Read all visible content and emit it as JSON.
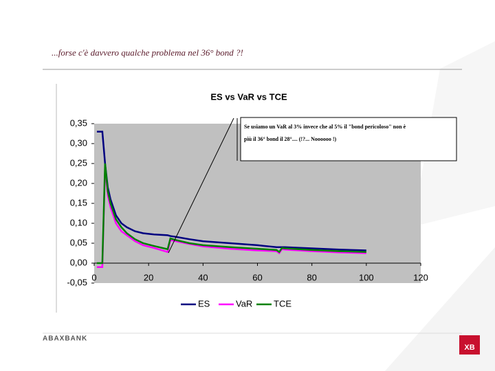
{
  "slide_title": "...forse c'è davvero qualche problema nel 36° bond ?!",
  "footer": {
    "brand": "ABAXBANK",
    "logo": "XB"
  },
  "chart_data": {
    "type": "line",
    "title": "ES vs VaR vs TCE",
    "x": [
      1,
      3,
      4,
      5,
      6,
      7,
      8,
      10,
      12,
      15,
      18,
      22,
      27,
      28,
      30,
      35,
      40,
      50,
      60,
      67,
      68,
      69,
      70,
      80,
      90,
      100
    ],
    "series": [
      {
        "name": "ES",
        "color": "#000080",
        "values": [
          0.33,
          0.33,
          0.25,
          0.19,
          0.16,
          0.14,
          0.12,
          0.1,
          0.09,
          0.08,
          0.075,
          0.072,
          0.07,
          0.068,
          0.066,
          0.06,
          0.055,
          0.05,
          0.045,
          0.04,
          0.04,
          0.04,
          0.04,
          0.037,
          0.034,
          0.032
        ]
      },
      {
        "name": "VaR",
        "color": "#ff00ff",
        "values": [
          -0.01,
          -0.01,
          0.24,
          0.17,
          0.14,
          0.12,
          0.1,
          0.08,
          0.07,
          0.055,
          0.045,
          0.038,
          0.028,
          0.058,
          0.055,
          0.048,
          0.042,
          0.036,
          0.032,
          0.03,
          0.025,
          0.035,
          0.034,
          0.03,
          0.027,
          0.025
        ]
      },
      {
        "name": "TCE",
        "color": "#008000",
        "values": [
          0.0,
          0.0,
          0.25,
          0.18,
          0.15,
          0.13,
          0.11,
          0.09,
          0.075,
          0.06,
          0.05,
          0.043,
          0.035,
          0.062,
          0.058,
          0.05,
          0.045,
          0.04,
          0.036,
          0.033,
          0.028,
          0.038,
          0.037,
          0.033,
          0.03,
          0.028
        ]
      }
    ],
    "xlim": [
      0,
      120
    ],
    "xticks": [
      0,
      20,
      40,
      60,
      80,
      100,
      120
    ],
    "ylim": [
      -0.05,
      0.35
    ],
    "yticks": [
      {
        "value": -0.05,
        "label": "-0,05"
      },
      {
        "value": 0,
        "label": "0,00"
      },
      {
        "value": 0.05,
        "label": "0,05"
      },
      {
        "value": 0.1,
        "label": "0,10"
      },
      {
        "value": 0.15,
        "label": "0,15"
      },
      {
        "value": 0.2,
        "label": "0,20"
      },
      {
        "value": 0.25,
        "label": "0,25"
      },
      {
        "value": 0.3,
        "label": "0,30"
      },
      {
        "value": 0.35,
        "label": "0,35"
      }
    ],
    "annotation": {
      "lines": [
        "Se usiamo un VaR al 3% invece che al 5% il \"bond pericoloso\" non è",
        "più il 36° bond il 28°.... (!?... Noooooo !)"
      ]
    },
    "legend": "bottom"
  }
}
